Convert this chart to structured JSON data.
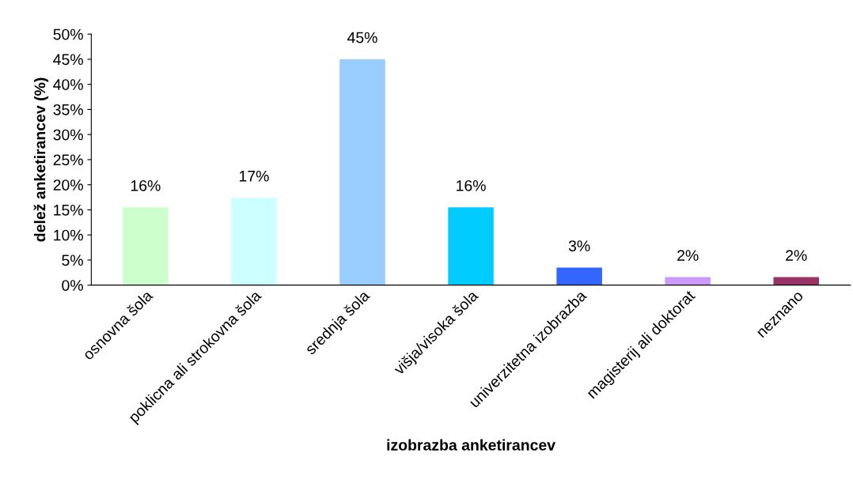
{
  "chart_data": {
    "type": "bar",
    "xlabel": "izobrazba anketirancev",
    "ylabel": "delež anketirancev (%)",
    "categories": [
      "osnovna šola",
      "poklicna ali strokovna šola",
      "srednja šola",
      "višja/visoka šola",
      "univerzitetna izobrazba",
      "magisterij ali doktorat",
      "neznano"
    ],
    "values": [
      15.5,
      17.4,
      45,
      15.5,
      3.5,
      1.6,
      1.6
    ],
    "value_labels": [
      "16%",
      "17%",
      "45%",
      "16%",
      "3%",
      "2%",
      "2%"
    ],
    "colors": [
      "#ccffcc",
      "#ccffff",
      "#99ccff",
      "#00ccff",
      "#3366ff",
      "#cc99ff",
      "#993366"
    ],
    "ylim": [
      0,
      50
    ],
    "yticks": [
      {
        "value": 0,
        "label": "0%"
      },
      {
        "value": 5,
        "label": "5%"
      },
      {
        "value": 10,
        "label": "10%"
      },
      {
        "value": 15,
        "label": "15%"
      },
      {
        "value": 20,
        "label": "20%"
      },
      {
        "value": 25,
        "label": "25%"
      },
      {
        "value": 30,
        "label": "30%"
      },
      {
        "value": 35,
        "label": "35%"
      },
      {
        "value": 40,
        "label": "40%"
      },
      {
        "value": 45,
        "label": "45%"
      },
      {
        "value": 50,
        "label": "50%"
      }
    ],
    "grid": false,
    "legend": false
  }
}
